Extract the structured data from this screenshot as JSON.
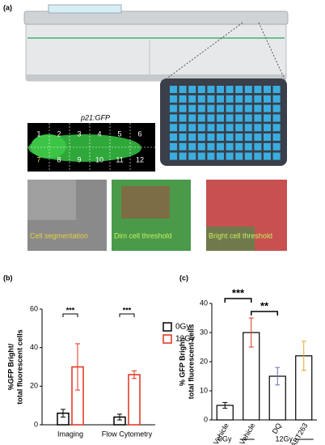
{
  "panel_labels": [
    "(a)",
    "(b)",
    "(c)"
  ],
  "panel_a": {
    "fish_label": "p21:GFP",
    "grid_numbers": [
      "1",
      "2",
      "3",
      "4",
      "5",
      "6",
      "7",
      "8",
      "9",
      "10",
      "11",
      "12"
    ],
    "image_labels": [
      "Cell segmentation",
      "Dim cell threshold",
      "Bright cell threshold"
    ]
  },
  "chart_data": [
    {
      "type": "bar",
      "categories": [
        "Imaging",
        "Flow Cytometry"
      ],
      "ylabel": [
        "%GFP Bright/",
        "total fluorescent cells"
      ],
      "series": [
        {
          "name": "0Gy",
          "color": "#000000",
          "values": [
            6,
            4
          ],
          "errors": [
            2,
            1.5
          ]
        },
        {
          "name": "12Gy",
          "color": "#e0301e",
          "values": [
            30,
            26
          ],
          "errors": [
            12,
            2
          ]
        }
      ],
      "ylim": [
        0,
        60
      ],
      "yticks": [
        0,
        20,
        40,
        60
      ],
      "annotations": [
        "***",
        "***"
      ],
      "legend": "right"
    },
    {
      "type": "bar",
      "categories": [
        "Vehicle",
        "Vehicle",
        "DQ",
        "ABT263"
      ],
      "ylabel": [
        "% GFP Bright/",
        "total fluorescent cells"
      ],
      "values": [
        5,
        30,
        15,
        22
      ],
      "errors": [
        1,
        5,
        3,
        5
      ],
      "colors": [
        "#000000",
        "#e0301e",
        "#6a6fb0",
        "#e8a030"
      ],
      "ylim": [
        0,
        40
      ],
      "yticks": [
        0,
        10,
        20,
        30,
        40
      ],
      "annotations": [
        "***",
        "**"
      ],
      "group_labels": [
        "0Gy",
        "12Gy"
      ]
    }
  ]
}
